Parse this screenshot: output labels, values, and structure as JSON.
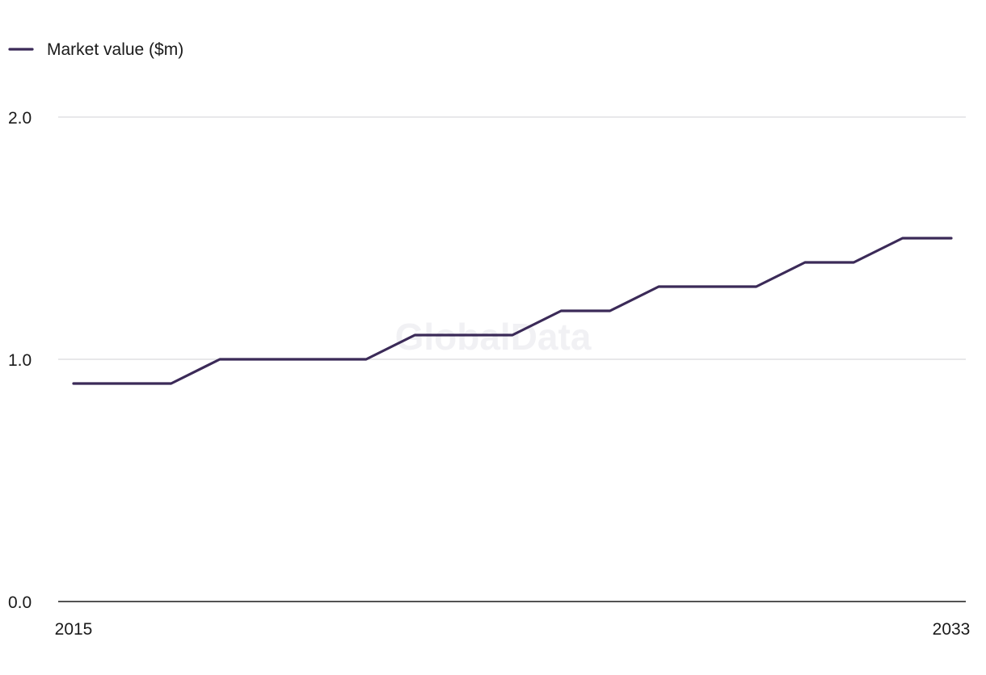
{
  "chart_data": {
    "type": "line",
    "x": [
      2015,
      2016,
      2017,
      2018,
      2019,
      2020,
      2021,
      2022,
      2023,
      2024,
      2025,
      2026,
      2027,
      2028,
      2029,
      2030,
      2031,
      2032,
      2033
    ],
    "series": [
      {
        "name": "Market value ($m)",
        "values": [
          0.9,
          0.9,
          0.9,
          1.0,
          1.0,
          1.0,
          1.0,
          1.1,
          1.1,
          1.1,
          1.2,
          1.2,
          1.3,
          1.3,
          1.3,
          1.4,
          1.4,
          1.5,
          1.5
        ],
        "color": "#3b2a58"
      }
    ],
    "ylim": [
      0,
      2
    ],
    "yticks": [
      "0.0",
      "1.0",
      "2.0"
    ],
    "xticks": [
      "2015",
      "2033"
    ],
    "legend_position": "top-left",
    "grid": true,
    "watermark": "GlobalData"
  }
}
